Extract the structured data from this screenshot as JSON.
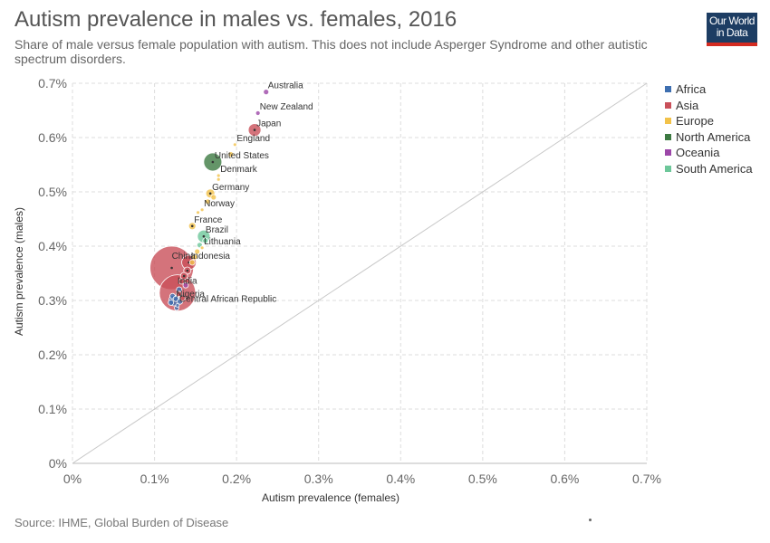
{
  "header": {
    "title": "Autism prevalence in males vs. females, 2016",
    "subtitle": "Share of male versus female population with autism. This does not include Asperger Syndrome and other autistic spectrum disorders.",
    "logo_line1": "Our World",
    "logo_line2": "in Data"
  },
  "footer": {
    "source": "Source: IHME, Global Burden of Disease"
  },
  "colors": {
    "Africa": "#3e6fb0",
    "Asia": "#c9505a",
    "Europe": "#f2c24a",
    "North America": "#3d7a42",
    "Oceania": "#9c47a8",
    "South America": "#6dc79a"
  },
  "chart_data": {
    "type": "scatter",
    "xlabel": "Autism prevalence (females)",
    "ylabel": "Autism prevalence (males)",
    "xlim": [
      0,
      0.7
    ],
    "ylim": [
      0,
      0.7
    ],
    "x_ticks": [
      "0%",
      "0.1%",
      "0.2%",
      "0.3%",
      "0.4%",
      "0.5%",
      "0.6%",
      "0.7%"
    ],
    "y_ticks": [
      "0%",
      "0.1%",
      "0.2%",
      "0.3%",
      "0.4%",
      "0.5%",
      "0.6%",
      "0.7%"
    ],
    "grid": true,
    "diagonal_line": true,
    "legend": [
      "Africa",
      "Asia",
      "Europe",
      "North America",
      "Oceania",
      "South America"
    ],
    "legend_placement": "right",
    "points": [
      {
        "label": "Australia",
        "x": 0.236,
        "y": 0.684,
        "region": "Oceania",
        "size": 3
      },
      {
        "label": "New Zealand",
        "x": 0.226,
        "y": 0.645,
        "region": "Oceania",
        "size": 2.5
      },
      {
        "label": "Japan",
        "x": 0.222,
        "y": 0.614,
        "region": "Asia",
        "size": 7
      },
      {
        "label": "England",
        "x": 0.198,
        "y": 0.587,
        "region": "Europe",
        "size": 2
      },
      {
        "label": "United States",
        "x": 0.171,
        "y": 0.555,
        "region": "North America",
        "size": 10
      },
      {
        "label": "Denmark",
        "x": 0.178,
        "y": 0.53,
        "region": "Europe",
        "size": 2
      },
      {
        "label": "Germany",
        "x": 0.168,
        "y": 0.497,
        "region": "Europe",
        "size": 5
      },
      {
        "label": "Norway",
        "x": 0.158,
        "y": 0.467,
        "region": "Europe",
        "size": 2
      },
      {
        "label": "France",
        "x": 0.146,
        "y": 0.437,
        "region": "Europe",
        "size": 4
      },
      {
        "label": "Brazil",
        "x": 0.16,
        "y": 0.418,
        "region": "South America",
        "size": 7
      },
      {
        "label": "China",
        "x": 0.121,
        "y": 0.36,
        "region": "Asia",
        "size": 24
      },
      {
        "label": "Lithuania",
        "x": 0.158,
        "y": 0.397,
        "region": "Europe",
        "size": 2
      },
      {
        "label": "Indonesia",
        "x": 0.142,
        "y": 0.37,
        "region": "Asia",
        "size": 8
      },
      {
        "label": "India",
        "x": 0.128,
        "y": 0.314,
        "region": "Asia",
        "size": 20
      },
      {
        "label": "Nigeria",
        "x": 0.124,
        "y": 0.3,
        "region": "Africa",
        "size": 6
      },
      {
        "label": "Central African Republic",
        "x": 0.128,
        "y": 0.291,
        "region": "Africa",
        "size": 2
      },
      {
        "label": "",
        "x": 0.193,
        "y": 0.569,
        "region": "Europe",
        "size": 3
      },
      {
        "label": "",
        "x": 0.178,
        "y": 0.523,
        "region": "Europe",
        "size": 2
      },
      {
        "label": "",
        "x": 0.172,
        "y": 0.49,
        "region": "Europe",
        "size": 3
      },
      {
        "label": "",
        "x": 0.165,
        "y": 0.482,
        "region": "Europe",
        "size": 3
      },
      {
        "label": "",
        "x": 0.153,
        "y": 0.462,
        "region": "Europe",
        "size": 2
      },
      {
        "label": "",
        "x": 0.162,
        "y": 0.41,
        "region": "South America",
        "size": 3
      },
      {
        "label": "",
        "x": 0.155,
        "y": 0.402,
        "region": "South America",
        "size": 3
      },
      {
        "label": "",
        "x": 0.152,
        "y": 0.39,
        "region": "Europe",
        "size": 3
      },
      {
        "label": "",
        "x": 0.149,
        "y": 0.38,
        "region": "Europe",
        "size": 3
      },
      {
        "label": "",
        "x": 0.146,
        "y": 0.37,
        "region": "Europe",
        "size": 3
      },
      {
        "label": "",
        "x": 0.14,
        "y": 0.355,
        "region": "Asia",
        "size": 4
      },
      {
        "label": "",
        "x": 0.136,
        "y": 0.345,
        "region": "Asia",
        "size": 4
      },
      {
        "label": "",
        "x": 0.133,
        "y": 0.335,
        "region": "Asia",
        "size": 3
      },
      {
        "label": "",
        "x": 0.138,
        "y": 0.328,
        "region": "Oceania",
        "size": 3
      },
      {
        "label": "",
        "x": 0.13,
        "y": 0.32,
        "region": "Africa",
        "size": 3
      },
      {
        "label": "",
        "x": 0.122,
        "y": 0.308,
        "region": "Africa",
        "size": 3
      },
      {
        "label": "",
        "x": 0.126,
        "y": 0.303,
        "region": "Africa",
        "size": 3
      },
      {
        "label": "",
        "x": 0.131,
        "y": 0.298,
        "region": "Africa",
        "size": 3
      },
      {
        "label": "",
        "x": 0.12,
        "y": 0.296,
        "region": "Africa",
        "size": 3
      },
      {
        "label": "",
        "x": 0.127,
        "y": 0.286,
        "region": "Africa",
        "size": 2.5
      },
      {
        "label": "",
        "x": 0.134,
        "y": 0.304,
        "region": "Asia",
        "size": 3
      },
      {
        "label": "",
        "x": 0.13,
        "y": 0.312,
        "region": "Asia",
        "size": 3
      }
    ]
  }
}
